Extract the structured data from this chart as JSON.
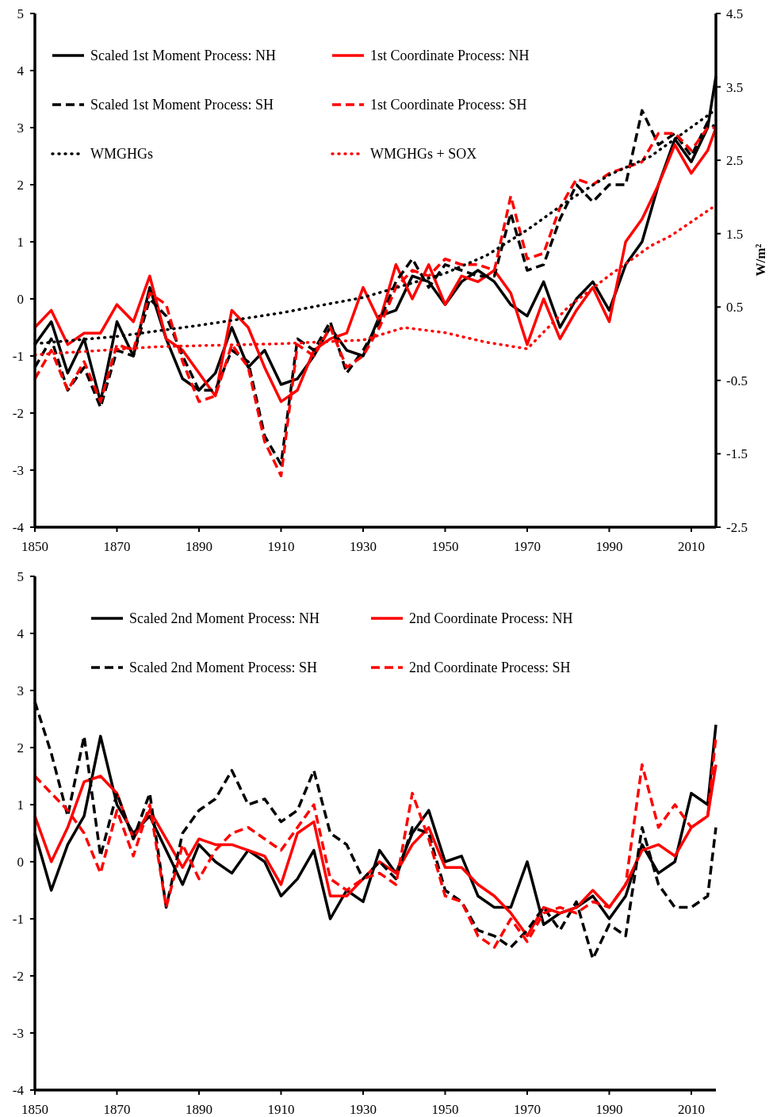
{
  "chart_data": [
    {
      "type": "line",
      "x": [
        1850,
        1854,
        1858,
        1862,
        1866,
        1870,
        1874,
        1878,
        1882,
        1886,
        1890,
        1894,
        1898,
        1902,
        1906,
        1910,
        1914,
        1918,
        1922,
        1926,
        1930,
        1934,
        1938,
        1942,
        1946,
        1950,
        1954,
        1958,
        1962,
        1966,
        1970,
        1974,
        1978,
        1982,
        1986,
        1990,
        1994,
        1998,
        2002,
        2006,
        2010,
        2014,
        2016
      ],
      "xlim": [
        1850,
        2016
      ],
      "xticks": [
        1850,
        1870,
        1890,
        1910,
        1930,
        1950,
        1970,
        1990,
        2010
      ],
      "ylim": [
        -4,
        5
      ],
      "yticks": [
        -4,
        -3,
        -2,
        -1,
        0,
        1,
        2,
        3,
        4,
        5
      ],
      "y2lim": [
        -2.5,
        4.5
      ],
      "y2ticks": [
        -2.5,
        -1.5,
        -0.5,
        0.5,
        1.5,
        2.5,
        3.5,
        4.5
      ],
      "y2label": "W/m²",
      "legend": "top",
      "grid": false,
      "series": [
        {
          "name": "Scaled 1st Moment Process: NH",
          "color": "#000000",
          "line_style": "solid",
          "values": [
            -0.8,
            -0.4,
            -1.3,
            -0.7,
            -1.8,
            -0.4,
            -1.0,
            0.2,
            -0.7,
            -1.4,
            -1.6,
            -1.3,
            -0.5,
            -1.2,
            -0.9,
            -1.5,
            -1.4,
            -1.0,
            -0.5,
            -0.9,
            -1.0,
            -0.3,
            -0.2,
            0.4,
            0.3,
            -0.1,
            0.3,
            0.5,
            0.3,
            -0.1,
            -0.3,
            0.3,
            -0.5,
            0.0,
            0.3,
            -0.2,
            0.6,
            1.0,
            2.0,
            2.8,
            2.4,
            3.0,
            3.9
          ]
        },
        {
          "name": "1st Coordinate Process: NH",
          "color": "#ff0000",
          "line_style": "solid",
          "values": [
            -0.5,
            -0.2,
            -0.8,
            -0.6,
            -0.6,
            -0.1,
            -0.4,
            0.4,
            -0.7,
            -0.9,
            -1.3,
            -1.7,
            -0.2,
            -0.5,
            -1.2,
            -1.8,
            -1.6,
            -0.9,
            -0.7,
            -0.6,
            0.2,
            -0.4,
            0.6,
            0.0,
            0.6,
            -0.1,
            0.4,
            0.3,
            0.5,
            0.1,
            -0.8,
            0.0,
            -0.7,
            -0.2,
            0.2,
            -0.4,
            1.0,
            1.4,
            2.0,
            2.7,
            2.2,
            2.6,
            3.0
          ]
        },
        {
          "name": "Scaled 1st Moment Process: SH",
          "color": "#000000",
          "line_style": "dashed",
          "values": [
            -1.2,
            -0.7,
            -1.6,
            -1.2,
            -1.9,
            -0.9,
            -1.0,
            0.0,
            -0.3,
            -1.0,
            -1.6,
            -1.6,
            -0.9,
            -1.1,
            -2.4,
            -2.9,
            -0.7,
            -0.9,
            -0.4,
            -1.3,
            -0.9,
            -0.4,
            0.3,
            0.7,
            0.2,
            0.6,
            0.5,
            0.4,
            0.4,
            1.5,
            0.5,
            0.6,
            1.4,
            2.0,
            1.7,
            2.0,
            2.0,
            3.3,
            2.7,
            2.9,
            2.5,
            3.1,
            3.0
          ]
        },
        {
          "name": "1st Coordinate Process: SH",
          "color": "#ff0000",
          "line_style": "dashed",
          "values": [
            -1.4,
            -0.9,
            -1.6,
            -1.1,
            -1.8,
            -0.8,
            -0.9,
            0.1,
            -0.1,
            -1.1,
            -1.8,
            -1.7,
            -0.8,
            -1.2,
            -2.5,
            -3.1,
            -0.8,
            -1.0,
            -0.5,
            -1.2,
            -1.0,
            -0.5,
            0.2,
            0.5,
            0.4,
            0.7,
            0.6,
            0.6,
            0.5,
            1.8,
            0.7,
            0.8,
            1.6,
            2.1,
            2.0,
            2.2,
            2.3,
            2.4,
            2.9,
            2.9,
            2.6,
            3.0,
            3.0
          ]
        },
        {
          "name": "WMGHGs",
          "color": "#000000",
          "line_style": "dotted",
          "axis": "y2",
          "x": [
            1850,
            1870,
            1890,
            1910,
            1930,
            1950,
            1960,
            1970,
            1980,
            1990,
            2000,
            2015
          ],
          "values": [
            0.0,
            0.1,
            0.25,
            0.42,
            0.63,
            0.96,
            1.2,
            1.55,
            1.95,
            2.3,
            2.55,
            3.15
          ]
        },
        {
          "name": "WMGHGs + SOX",
          "color": "#ff0000",
          "line_style": "dotted",
          "axis": "y2",
          "x": [
            1850,
            1880,
            1910,
            1930,
            1940,
            1950,
            1960,
            1970,
            1980,
            1990,
            2000,
            2005,
            2015
          ],
          "values": [
            -0.15,
            -0.04,
            0.0,
            0.05,
            0.22,
            0.15,
            0.02,
            -0.07,
            0.5,
            0.93,
            1.33,
            1.47,
            1.85
          ]
        }
      ]
    },
    {
      "type": "line",
      "x": [
        1850,
        1854,
        1858,
        1862,
        1866,
        1870,
        1874,
        1878,
        1882,
        1886,
        1890,
        1894,
        1898,
        1902,
        1906,
        1910,
        1914,
        1918,
        1922,
        1926,
        1930,
        1934,
        1938,
        1942,
        1946,
        1950,
        1954,
        1958,
        1962,
        1966,
        1970,
        1974,
        1978,
        1982,
        1986,
        1990,
        1994,
        1998,
        2002,
        2006,
        2010,
        2014,
        2016
      ],
      "xlim": [
        1850,
        2016
      ],
      "xticks": [
        1850,
        1870,
        1890,
        1910,
        1930,
        1950,
        1970,
        1990,
        2010
      ],
      "ylim": [
        -4,
        5
      ],
      "yticks": [
        -4,
        -3,
        -2,
        -1,
        0,
        1,
        2,
        3,
        4,
        5
      ],
      "legend": "top",
      "grid": false,
      "series": [
        {
          "name": "Scaled 2nd Moment Process: NH",
          "color": "#000000",
          "line_style": "solid",
          "values": [
            0.5,
            -0.5,
            0.3,
            0.8,
            2.2,
            1.0,
            0.5,
            0.8,
            0.2,
            -0.4,
            0.3,
            0.0,
            -0.2,
            0.2,
            0.0,
            -0.6,
            -0.3,
            0.2,
            -1.0,
            -0.5,
            -0.7,
            0.2,
            -0.2,
            0.5,
            0.9,
            0.0,
            0.1,
            -0.6,
            -0.8,
            -0.8,
            0.0,
            -1.1,
            -0.9,
            -0.8,
            -0.6,
            -1.0,
            -0.6,
            0.3,
            -0.2,
            0.0,
            1.2,
            1.0,
            2.4
          ]
        },
        {
          "name": "2nd Coordinate Process: NH",
          "color": "#ff0000",
          "line_style": "solid",
          "values": [
            0.8,
            0.0,
            0.6,
            1.4,
            1.5,
            1.2,
            0.4,
            0.9,
            0.4,
            -0.1,
            0.4,
            0.3,
            0.3,
            0.2,
            0.1,
            -0.4,
            0.5,
            0.7,
            -0.6,
            -0.6,
            -0.3,
            0.0,
            -0.2,
            0.3,
            0.6,
            -0.1,
            -0.1,
            -0.4,
            -0.6,
            -0.9,
            -1.3,
            -0.8,
            -0.9,
            -0.8,
            -0.5,
            -0.8,
            -0.4,
            0.2,
            0.3,
            0.1,
            0.6,
            0.8,
            1.7
          ]
        },
        {
          "name": "Scaled 2nd Moment Process: SH",
          "color": "#000000",
          "line_style": "dashed",
          "values": [
            2.8,
            1.9,
            0.8,
            2.2,
            0.1,
            1.2,
            0.4,
            1.2,
            -0.8,
            0.5,
            0.9,
            1.1,
            1.6,
            1.0,
            1.1,
            0.7,
            0.9,
            1.6,
            0.5,
            0.3,
            -0.3,
            0.0,
            -0.3,
            0.6,
            0.5,
            -0.5,
            -0.7,
            -1.2,
            -1.3,
            -1.5,
            -1.2,
            -0.8,
            -1.2,
            -0.7,
            -1.7,
            -1.1,
            -1.3,
            0.6,
            -0.4,
            -0.8,
            -0.8,
            -0.6,
            0.6
          ]
        },
        {
          "name": "2nd Coordinate Process: SH",
          "color": "#ff0000",
          "line_style": "dashed",
          "values": [
            1.5,
            1.2,
            0.9,
            0.5,
            -0.2,
            0.9,
            0.1,
            1.0,
            -0.8,
            0.3,
            -0.3,
            0.2,
            0.5,
            0.6,
            0.4,
            0.2,
            0.6,
            1.0,
            -0.3,
            -0.5,
            -0.3,
            -0.2,
            -0.4,
            1.2,
            0.4,
            -0.6,
            -0.7,
            -1.3,
            -1.5,
            -1.0,
            -1.4,
            -0.9,
            -0.8,
            -0.9,
            -0.7,
            -0.8,
            -0.4,
            1.7,
            0.6,
            1.0,
            0.6,
            0.8,
            2.2
          ]
        }
      ]
    }
  ]
}
